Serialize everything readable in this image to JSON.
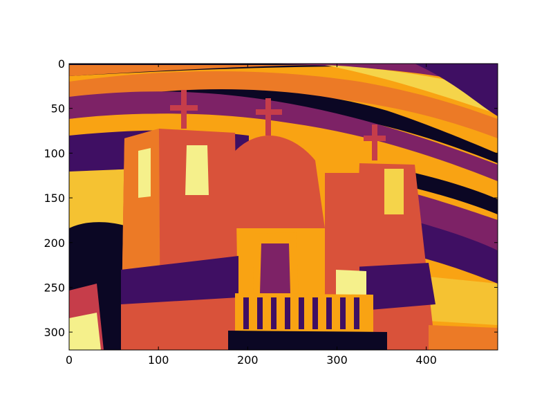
{
  "chart_data": {
    "type": "heatmap",
    "title": "",
    "xlabel": "",
    "ylabel": "",
    "xlim": [
      0,
      480
    ],
    "ylim": [
      320,
      0
    ],
    "image_size": {
      "width": 480,
      "height": 320
    },
    "colormap": "inferno",
    "grid": false,
    "x_ticks": [
      {
        "value": 0,
        "label": "0"
      },
      {
        "value": 100,
        "label": "100"
      },
      {
        "value": 200,
        "label": "200"
      },
      {
        "value": 300,
        "label": "300"
      },
      {
        "value": 400,
        "label": "400"
      }
    ],
    "y_ticks": [
      {
        "value": 0,
        "label": "0"
      },
      {
        "value": 50,
        "label": "50"
      },
      {
        "value": 100,
        "label": "100"
      },
      {
        "value": 150,
        "label": "150"
      },
      {
        "value": 200,
        "label": "200"
      },
      {
        "value": 250,
        "label": "250"
      },
      {
        "value": 300,
        "label": "300"
      }
    ],
    "palette": {
      "black": "#0b0724",
      "purple": "#3f0f63",
      "magenta": "#7d2266",
      "red": "#c63d4a",
      "redorange": "#d9523a",
      "orange": "#ec7a26",
      "amber": "#f9a313",
      "yellow": "#f5d44a",
      "pale": "#f5f08b"
    }
  }
}
